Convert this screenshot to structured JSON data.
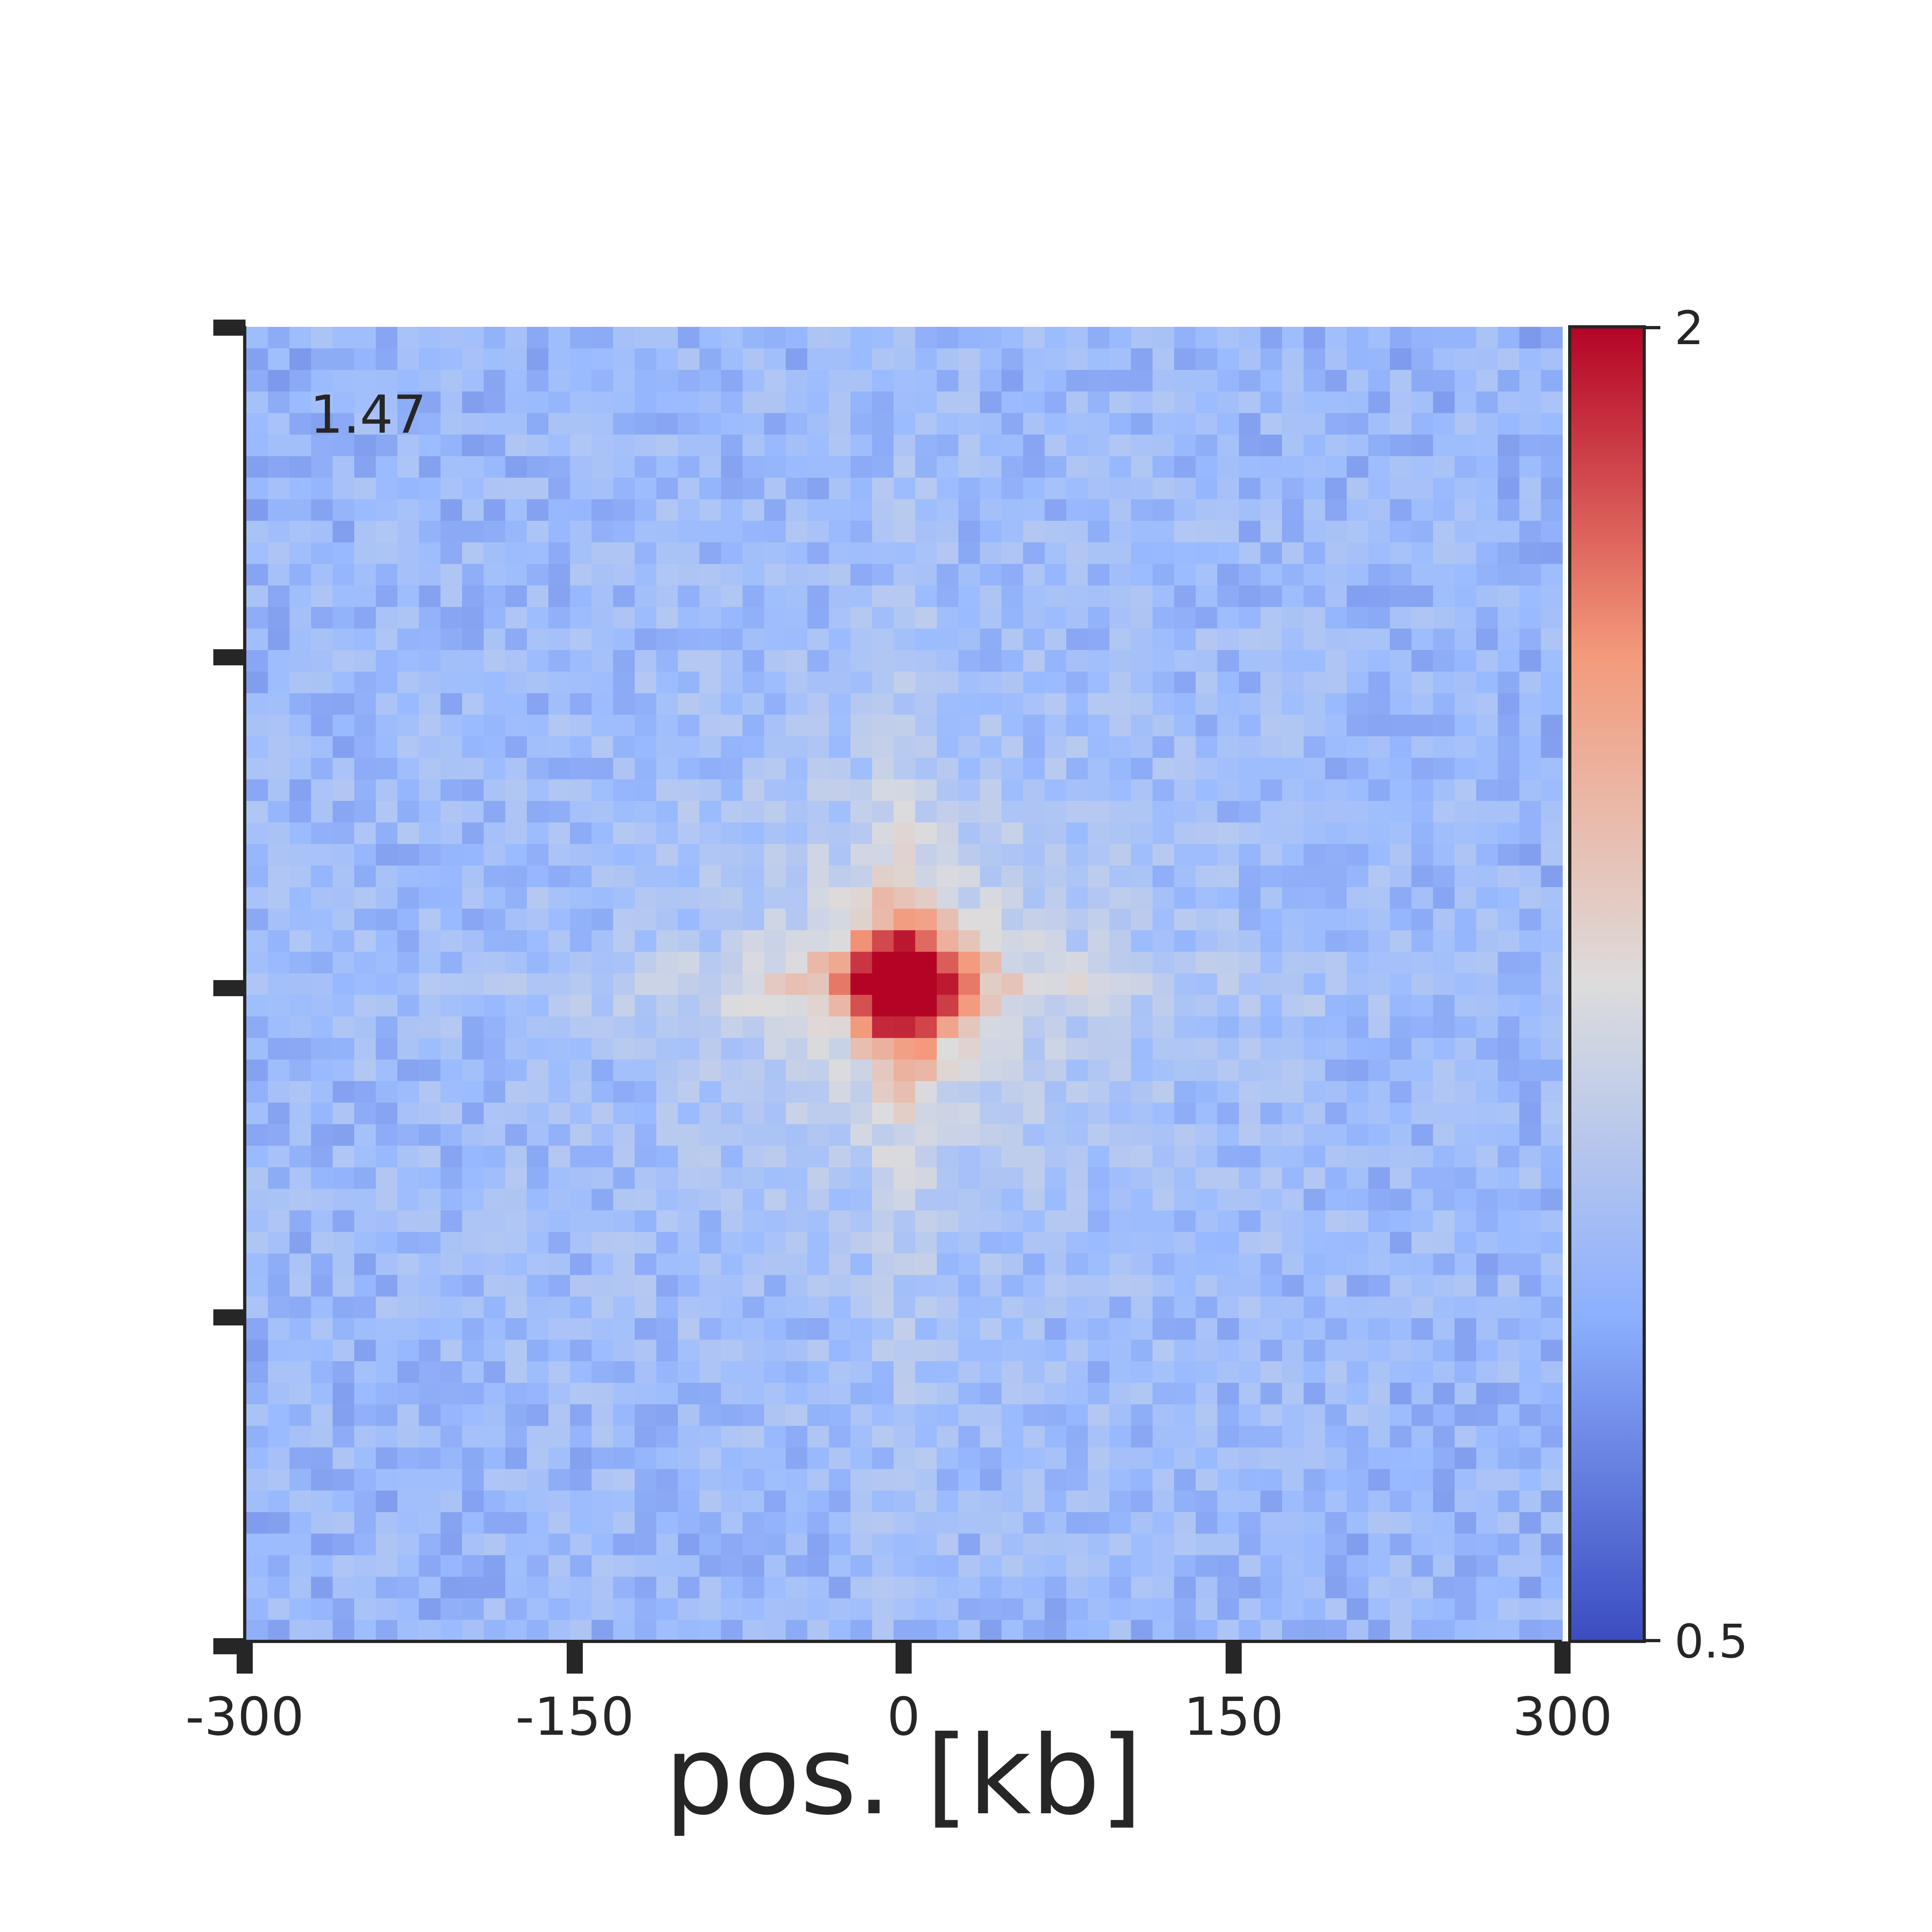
{
  "chart_data": {
    "type": "heatmap",
    "title": "",
    "annotation": "1.47",
    "xlabel": "pos. [kb]",
    "ylabel": "",
    "xlim": [
      -300,
      300
    ],
    "xticks": [
      "-300",
      "-150",
      "0",
      "150",
      "300"
    ],
    "yticks": [
      "",
      "",
      "",
      "",
      ""
    ],
    "grid_size": 61,
    "colormap": "coolwarm",
    "colorbar": {
      "min": 0.5,
      "max": 2,
      "ticks": [
        "2",
        "0.5"
      ],
      "colors": [
        "#b40426",
        "#f4987a",
        "#dddcdc",
        "#9abbff",
        "#3b4cc0"
      ]
    },
    "pattern": {
      "description_values": "Aggregate contact-enrichment map: background ~0.9-1.05, central peak ~1.9 at (0,0), cross-shaped stripes of ~1.2-1.3 along x=0 and y=0, decaying with distance",
      "background": 0.95,
      "center_peak": 1.9,
      "stripe_level": 1.25
    }
  },
  "colors": {
    "axis": "#262626",
    "background": "#ffffff"
  }
}
